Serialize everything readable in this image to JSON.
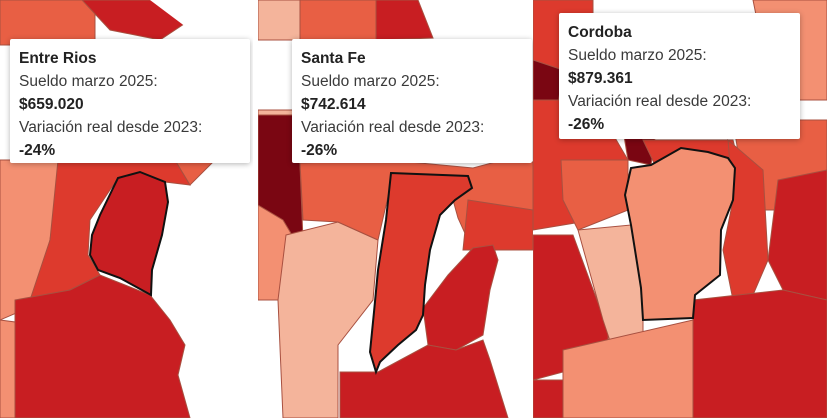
{
  "colors": {
    "light": "#f4b49b",
    "salmon": "#f39072",
    "orange_red": "#e85f44",
    "red": "#dd3a2d",
    "crimson": "#c81e22",
    "dark": "#7a0612",
    "border": "#a85040",
    "highlight_border": "#111111",
    "background": "#ffffff"
  },
  "panels": [
    {
      "province": "Entre Rios",
      "salary_label": "Sueldo marzo 2025:",
      "salary": "$659.020",
      "variation_label": "Variación real desde 2023:",
      "variation": "-24%",
      "fill": "crimson"
    },
    {
      "province": "Santa Fe",
      "salary_label": "Sueldo marzo 2025:",
      "salary": "$742.614",
      "variation_label": "Variación real desde 2023:",
      "variation": "-26%",
      "fill": "red"
    },
    {
      "province": "Cordoba",
      "salary_label": "Sueldo marzo 2025:",
      "salary": "$879.361",
      "variation_label": "Variación real desde 2023:",
      "variation": "-26%",
      "fill": "salmon"
    }
  ]
}
